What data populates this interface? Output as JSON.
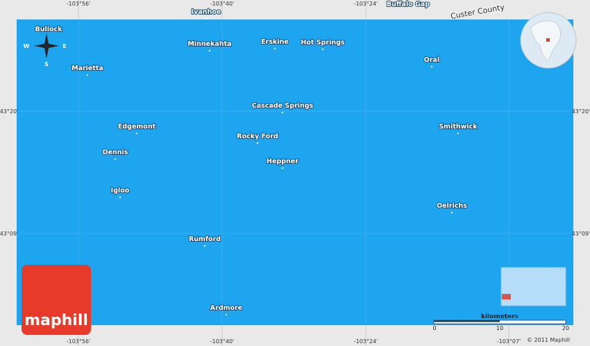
{
  "map": {
    "top_coords": [
      "-103°56'",
      "-103°40'",
      "-103°24'"
    ],
    "bottom_coords": [
      "-103°56'",
      "-103°40'",
      "-103°24'",
      "-103°07'"
    ],
    "left_coords": [
      "43°20'",
      "43°09'"
    ],
    "right_coords": [
      "43°20'",
      "43°09'"
    ],
    "places": [
      "Ivanhoe",
      "Buffalo Gap",
      "Custer County",
      "Bullock",
      "Minnekahta",
      "Erskine",
      "Hot Springs",
      "Oral",
      "Marietta",
      "Cascade Springs",
      "Edgemont",
      "Smithwick",
      "Rocky Ford",
      "Dennis",
      "Heppner",
      "Igloo",
      "Oelrichs",
      "Rumford",
      "Ardmore"
    ],
    "compass": [
      "W",
      "E",
      "S"
    ],
    "scale": {
      "unit": "kilometers",
      "ticks": [
        "0",
        "10",
        "20"
      ]
    },
    "copyright": "© 2011 Maphill",
    "logo": "maphill"
  }
}
